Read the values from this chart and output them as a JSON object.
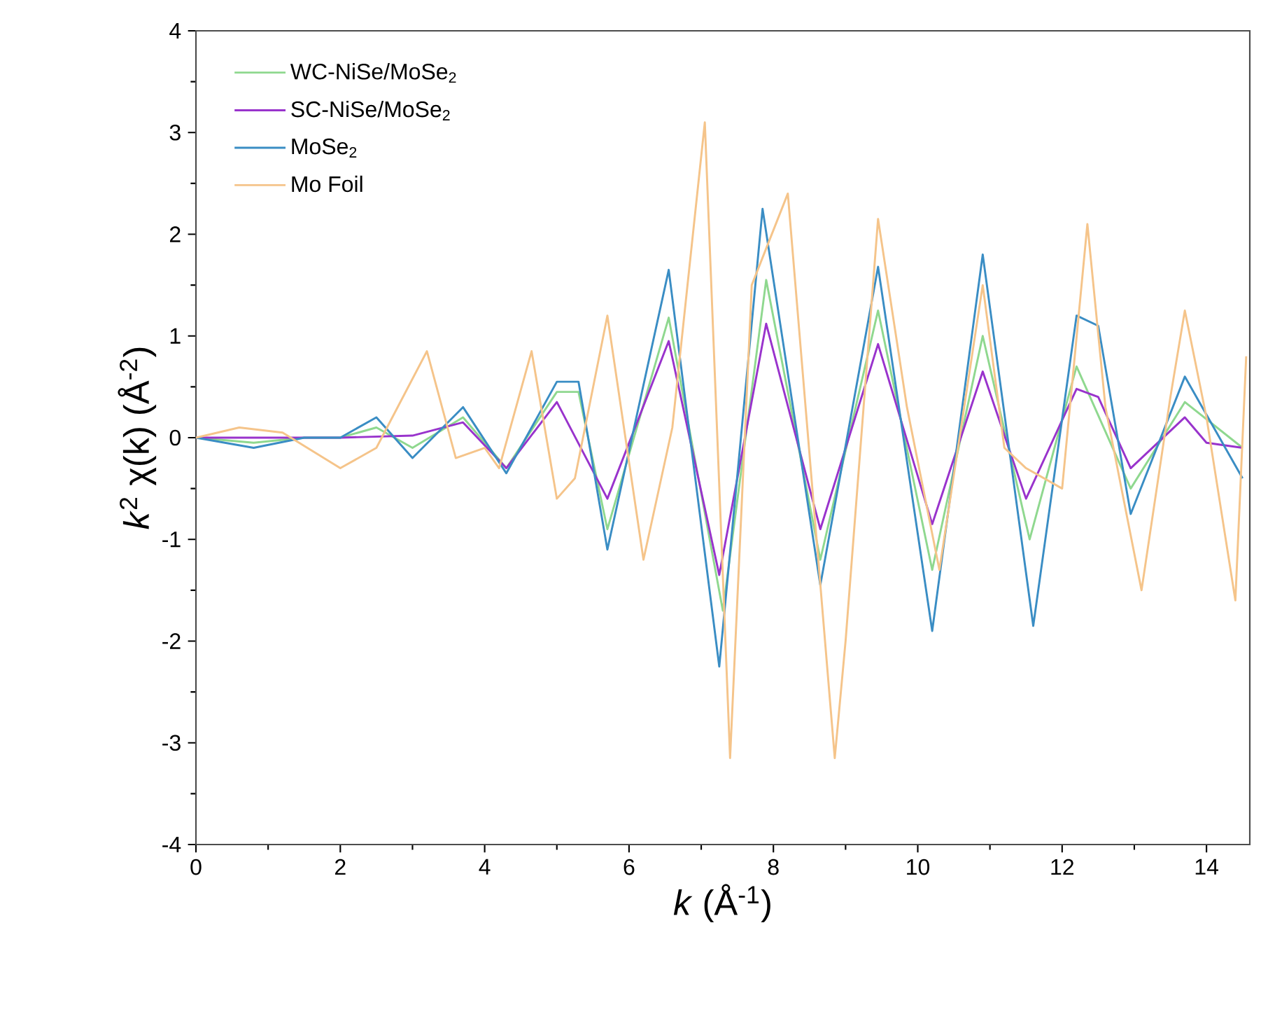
{
  "chart_data": {
    "type": "line",
    "xlabel": "*k* (Å$^{-1}$)",
    "ylabel": "*k*$^{2}$ χ(k) (Å$^{-2}$)",
    "xlim": [
      0,
      14.6
    ],
    "ylim": [
      -4,
      4
    ],
    "xticks": [
      0,
      2,
      4,
      6,
      8,
      10,
      12,
      14
    ],
    "yticks": [
      -4,
      -3,
      -2,
      -1,
      0,
      1,
      2,
      3,
      4
    ],
    "legend": "top left",
    "series": [
      {
        "name": "WC-NiSe/MoSe$_{2}$",
        "color": "#8fd88f",
        "x": [
          0,
          0.8,
          1.5,
          2.0,
          2.5,
          3.0,
          3.7,
          4.3,
          5.0,
          5.3,
          5.7,
          6.55,
          7.3,
          7.9,
          8.65,
          9.45,
          10.2,
          10.9,
          11.55,
          12.2,
          12.95,
          13.7,
          14.5
        ],
        "values": [
          0,
          -0.05,
          0,
          0,
          0.1,
          -0.1,
          0.2,
          -0.3,
          0.45,
          0.45,
          -0.9,
          1.18,
          -1.7,
          1.55,
          -1.2,
          1.25,
          -1.3,
          1.0,
          -1.0,
          0.7,
          -0.5,
          0.35,
          -0.1
        ]
      },
      {
        "name": "SC-NiSe/MoSe$_{2}$",
        "color": "#9933cc",
        "x": [
          0,
          1.0,
          2.0,
          3.0,
          3.7,
          4.3,
          5.0,
          5.7,
          6.55,
          7.25,
          7.9,
          8.65,
          9.45,
          10.2,
          10.9,
          11.5,
          12.2,
          12.5,
          12.95,
          13.7,
          14.0,
          14.5
        ],
        "values": [
          0,
          0,
          0,
          0.02,
          0.15,
          -0.3,
          0.35,
          -0.6,
          0.95,
          -1.35,
          1.12,
          -0.9,
          0.92,
          -0.85,
          0.65,
          -0.6,
          0.48,
          0.4,
          -0.3,
          0.2,
          -0.05,
          -0.1
        ]
      },
      {
        "name": "MoSe$_{2}$",
        "color": "#3a8dc4",
        "x": [
          0,
          0.8,
          1.5,
          2.0,
          2.5,
          3.0,
          3.7,
          4.3,
          5.0,
          5.3,
          5.7,
          6.55,
          7.25,
          7.85,
          8.65,
          9.45,
          10.2,
          10.9,
          11.6,
          12.2,
          12.5,
          12.95,
          13.7,
          14.5
        ],
        "values": [
          0,
          -0.1,
          0,
          0,
          0.2,
          -0.2,
          0.3,
          -0.35,
          0.55,
          0.55,
          -1.1,
          1.65,
          -2.25,
          2.25,
          -1.45,
          1.68,
          -1.9,
          1.8,
          -1.85,
          1.2,
          1.1,
          -0.75,
          0.6,
          -0.4
        ]
      },
      {
        "name": "Mo Foil",
        "color": "#f5c48a",
        "x": [
          0,
          0.6,
          1.2,
          2.0,
          2.5,
          3.2,
          3.6,
          4.0,
          4.2,
          4.65,
          5.0,
          5.25,
          5.7,
          6.2,
          6.6,
          7.05,
          7.4,
          7.7,
          8.2,
          8.85,
          9.0,
          9.45,
          9.85,
          10.3,
          10.9,
          11.2,
          11.5,
          12.0,
          12.35,
          12.6,
          13.1,
          13.5,
          13.7,
          14.0,
          14.4,
          14.55
        ],
        "values": [
          0,
          0.1,
          0.05,
          -0.3,
          -0.1,
          0.85,
          -0.2,
          -0.1,
          -0.3,
          0.85,
          -0.6,
          -0.4,
          1.2,
          -1.2,
          0.1,
          3.1,
          -3.15,
          1.5,
          2.4,
          -3.15,
          -2.0,
          2.15,
          0.3,
          -1.3,
          1.5,
          -0.1,
          -0.3,
          -0.5,
          2.1,
          0.3,
          -1.5,
          0.4,
          1.25,
          0.2,
          -1.6,
          0.8
        ]
      }
    ]
  }
}
